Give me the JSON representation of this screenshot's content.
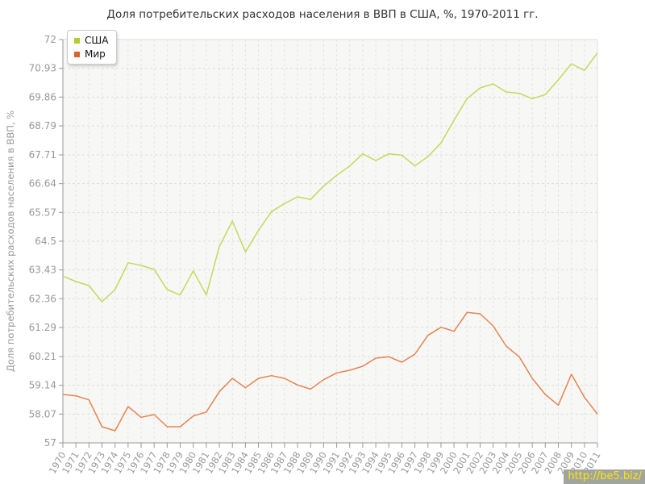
{
  "page": {
    "watermark": "http://be5.biz/"
  },
  "chart_data": {
    "type": "line",
    "title": "Доля потребительских расходов населения в ВВП в США, %, 1970-2011 гг.",
    "xlabel": "",
    "ylabel": "Доля потребительских расходов населения в ВВП, %",
    "ylim": [
      57,
      72
    ],
    "yticks": [
      72,
      70.93,
      69.86,
      68.79,
      67.71,
      66.64,
      65.57,
      64.5,
      63.43,
      62.36,
      61.29,
      60.21,
      59.14,
      58.07,
      57
    ],
    "grid": true,
    "legend_position": "top-left",
    "x": [
      1970,
      1971,
      1972,
      1973,
      1974,
      1975,
      1976,
      1977,
      1978,
      1979,
      1980,
      1981,
      1982,
      1983,
      1984,
      1985,
      1986,
      1987,
      1988,
      1989,
      1990,
      1991,
      1992,
      1993,
      1994,
      1995,
      1996,
      1997,
      1998,
      1999,
      2000,
      2001,
      2002,
      2003,
      2004,
      2005,
      2006,
      2007,
      2008,
      2009,
      2010,
      2011
    ],
    "series": [
      {
        "id": "usa",
        "name": "США",
        "marker_color": "#b2cc2d",
        "line_color": "#c3d95b",
        "values": [
          63.2,
          63.0,
          62.85,
          62.25,
          62.7,
          63.7,
          63.6,
          63.45,
          62.7,
          62.5,
          63.4,
          62.5,
          64.3,
          65.25,
          64.1,
          64.9,
          65.6,
          65.9,
          66.15,
          66.05,
          66.55,
          66.95,
          67.3,
          67.75,
          67.5,
          67.75,
          67.7,
          67.3,
          67.65,
          68.15,
          69.0,
          69.8,
          70.2,
          70.35,
          70.05,
          70.0,
          69.8,
          69.95,
          70.5,
          71.1,
          70.85,
          71.5
        ]
      },
      {
        "id": "mir",
        "name": "Мир",
        "marker_color": "#e0622b",
        "line_color": "#e8834e",
        "values": [
          58.8,
          58.75,
          58.6,
          57.6,
          57.45,
          58.35,
          57.95,
          58.05,
          57.6,
          57.6,
          58.0,
          58.15,
          58.9,
          59.4,
          59.05,
          59.4,
          59.5,
          59.4,
          59.15,
          59.0,
          59.35,
          59.6,
          59.7,
          59.85,
          60.15,
          60.2,
          60.0,
          60.3,
          61.0,
          61.3,
          61.15,
          61.85,
          61.8,
          61.35,
          60.6,
          60.2,
          59.4,
          58.8,
          58.4,
          59.55,
          58.7,
          58.07
        ]
      }
    ],
    "colors": {
      "plot_bg": "#f7f7f6",
      "grid_h": "#dcdcdc",
      "grid_v": "#e3e3e3",
      "axis": "#999999",
      "tick_label": "#999999",
      "title": "#333333",
      "plot_border": "#dddddd",
      "watermark_bg": "#a1a5a0",
      "watermark_text": "#ffe400"
    }
  }
}
